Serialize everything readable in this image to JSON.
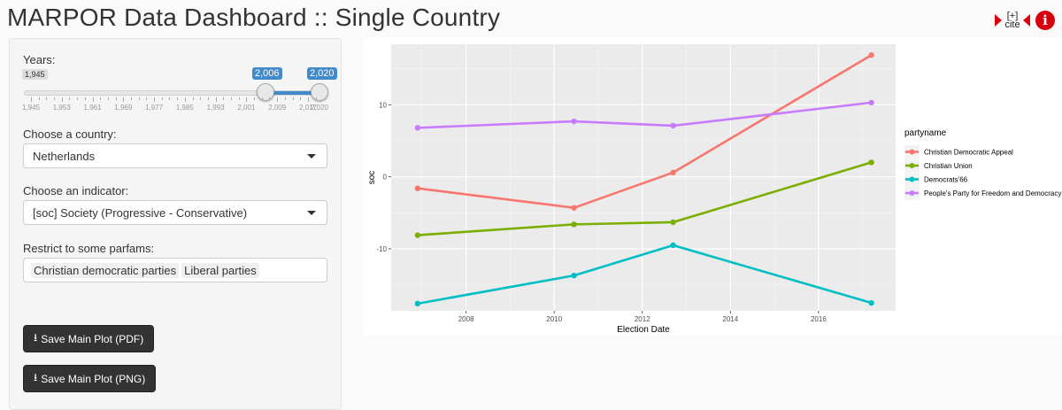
{
  "app": {
    "title": "MARPOR Data Dashboard :: Single Country",
    "cite_label": "[+]\ncite",
    "cite_top": "[+]",
    "cite_bottom": "cite"
  },
  "sidebar": {
    "years_label": "Years:",
    "slider": {
      "min_label": "1,945",
      "low_value": "2,006",
      "high_value": "2,020",
      "tick_labels": [
        "1,945",
        "1,953",
        "1,961",
        "1,969",
        "1,977",
        "1,985",
        "1,993",
        "2,001",
        "2,009",
        "2,017",
        "2,020"
      ]
    },
    "country_label": "Choose a country:",
    "country_value": "Netherlands",
    "indicator_label": "Choose an indicator:",
    "indicator_value": "[soc] Society (Progressive - Conservative)",
    "parfam_label": "Restrict to some parfams:",
    "parfam_chips": [
      "Christian democratic parties",
      "Liberal parties"
    ],
    "save_pdf_label": "Save Main Plot (PDF)",
    "save_png_label": "Save Main Plot (PNG)"
  },
  "chart_data": {
    "type": "line",
    "xlabel": "Election Date",
    "ylabel": "soc",
    "x_ticks": [
      "2008",
      "2010",
      "2012",
      "2014",
      "2016"
    ],
    "y_ticks": [
      "-10",
      "0",
      "10"
    ],
    "xlim": [
      2006.3,
      2017.75
    ],
    "ylim": [
      -18.6,
      18.4
    ],
    "legend_title": "partyname",
    "legend_position": "right",
    "grid": true,
    "series": [
      {
        "name": "Christian Democratic Appeal",
        "color": "#F8766D",
        "x": [
          2006.9,
          2010.45,
          2012.7,
          2017.2
        ],
        "y": [
          -1.6,
          -4.3,
          0.6,
          16.9
        ]
      },
      {
        "name": "Christian Union",
        "color": "#7CAE00",
        "x": [
          2006.9,
          2010.45,
          2012.7,
          2017.2
        ],
        "y": [
          -8.1,
          -6.6,
          -6.3,
          2.0
        ]
      },
      {
        "name": "Democrats'66",
        "color": "#00BFC4",
        "x": [
          2006.9,
          2010.45,
          2012.7,
          2017.2
        ],
        "y": [
          -17.6,
          -13.7,
          -9.5,
          -17.5
        ]
      },
      {
        "name": "People's Party for Freedom and Democracy",
        "color": "#C77CFF",
        "x": [
          2006.9,
          2010.45,
          2012.7,
          2017.2
        ],
        "y": [
          6.8,
          7.7,
          7.1,
          10.3
        ]
      }
    ]
  }
}
